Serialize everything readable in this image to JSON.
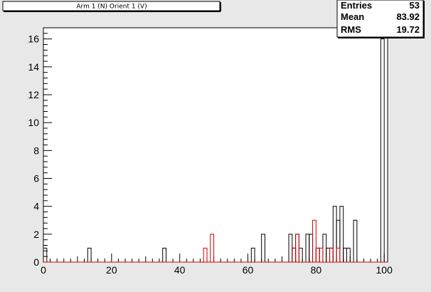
{
  "title": "Arm 1 (N) Orient 1 (V)",
  "stats": {
    "entries_label": "Entries",
    "entries_value": "53",
    "mean_label": "Mean",
    "mean_value": "83.92",
    "rms_label": "RMS",
    "rms_value": "19.72"
  },
  "colors": {
    "background": "#e8e8e8",
    "plot_background": "#ffffff",
    "series_black": "#000000",
    "series_red": "#cc0000"
  },
  "chart_data": {
    "type": "histogram",
    "title": "Arm 1 (N) Orient 1 (V)",
    "xlabel": "",
    "ylabel": "",
    "xlim": [
      0,
      101
    ],
    "ylim": [
      0,
      16.8
    ],
    "x_ticks": [
      0,
      20,
      40,
      60,
      80,
      100
    ],
    "y_ticks": [
      0,
      2,
      4,
      6,
      8,
      10,
      12,
      14,
      16
    ],
    "bin_width": 1,
    "grid": false,
    "series": [
      {
        "color": "#000000",
        "bins": [
          {
            "x": 0,
            "y": 1
          },
          {
            "x": 13,
            "y": 1
          },
          {
            "x": 35,
            "y": 1
          },
          {
            "x": 61,
            "y": 1
          },
          {
            "x": 64,
            "y": 2
          },
          {
            "x": 72,
            "y": 2
          },
          {
            "x": 73,
            "y": 1
          },
          {
            "x": 74,
            "y": 2
          },
          {
            "x": 75,
            "y": 1
          },
          {
            "x": 77,
            "y": 2
          },
          {
            "x": 78,
            "y": 2
          },
          {
            "x": 80,
            "y": 1
          },
          {
            "x": 82,
            "y": 2
          },
          {
            "x": 83,
            "y": 1
          },
          {
            "x": 84,
            "y": 1
          },
          {
            "x": 85,
            "y": 4
          },
          {
            "x": 86,
            "y": 3
          },
          {
            "x": 87,
            "y": 4
          },
          {
            "x": 88,
            "y": 1
          },
          {
            "x": 89,
            "y": 1
          },
          {
            "x": 91,
            "y": 3
          },
          {
            "x": 99,
            "y": 16
          }
        ]
      },
      {
        "color": "#cc0000",
        "bins": [
          {
            "x": 47,
            "y": 1
          },
          {
            "x": 49,
            "y": 2
          },
          {
            "x": 73,
            "y": 1
          },
          {
            "x": 74,
            "y": 2
          },
          {
            "x": 79,
            "y": 3
          },
          {
            "x": 80,
            "y": 1
          },
          {
            "x": 81,
            "y": 1
          },
          {
            "x": 84,
            "y": 1
          },
          {
            "x": 86,
            "y": 1
          }
        ]
      }
    ]
  }
}
